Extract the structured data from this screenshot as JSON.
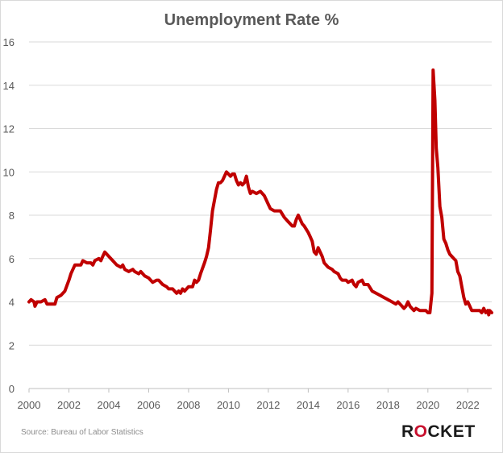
{
  "chart_data": {
    "type": "line",
    "title": "Unemployment Rate %",
    "xlabel": "",
    "ylabel": "",
    "xlim": [
      2000,
      2023.2
    ],
    "ylim": [
      0,
      16
    ],
    "grid": true,
    "x_ticks": [
      "2000",
      "2002",
      "2004",
      "2006",
      "2008",
      "2010",
      "2012",
      "2014",
      "2016",
      "2018",
      "2020",
      "2022"
    ],
    "y_ticks": [
      "0",
      "2",
      "4",
      "6",
      "8",
      "10",
      "12",
      "14",
      "16"
    ],
    "series": [
      {
        "color": "#c00000",
        "points": [
          [
            2000.0,
            4.0
          ],
          [
            2000.1,
            4.1
          ],
          [
            2000.25,
            4.0
          ],
          [
            2000.3,
            3.8
          ],
          [
            2000.4,
            4.0
          ],
          [
            2000.6,
            4.0
          ],
          [
            2000.8,
            4.1
          ],
          [
            2000.9,
            3.9
          ],
          [
            2001.1,
            3.9
          ],
          [
            2001.3,
            3.9
          ],
          [
            2001.4,
            4.2
          ],
          [
            2001.6,
            4.3
          ],
          [
            2001.8,
            4.5
          ],
          [
            2002.0,
            5.0
          ],
          [
            2002.1,
            5.3
          ],
          [
            2002.3,
            5.7
          ],
          [
            2002.6,
            5.7
          ],
          [
            2002.7,
            5.9
          ],
          [
            2002.9,
            5.8
          ],
          [
            2003.1,
            5.8
          ],
          [
            2003.2,
            5.7
          ],
          [
            2003.3,
            5.9
          ],
          [
            2003.5,
            6.0
          ],
          [
            2003.6,
            5.9
          ],
          [
            2003.7,
            6.1
          ],
          [
            2003.8,
            6.3
          ],
          [
            2003.9,
            6.2
          ],
          [
            2004.0,
            6.1
          ],
          [
            2004.2,
            5.9
          ],
          [
            2004.4,
            5.7
          ],
          [
            2004.6,
            5.6
          ],
          [
            2004.7,
            5.7
          ],
          [
            2004.8,
            5.5
          ],
          [
            2005.0,
            5.4
          ],
          [
            2005.2,
            5.5
          ],
          [
            2005.3,
            5.4
          ],
          [
            2005.5,
            5.3
          ],
          [
            2005.6,
            5.4
          ],
          [
            2005.8,
            5.2
          ],
          [
            2006.0,
            5.1
          ],
          [
            2006.2,
            4.9
          ],
          [
            2006.4,
            5.0
          ],
          [
            2006.5,
            5.0
          ],
          [
            2006.7,
            4.8
          ],
          [
            2006.9,
            4.7
          ],
          [
            2007.0,
            4.6
          ],
          [
            2007.2,
            4.6
          ],
          [
            2007.4,
            4.4
          ],
          [
            2007.5,
            4.5
          ],
          [
            2007.6,
            4.4
          ],
          [
            2007.7,
            4.6
          ],
          [
            2007.8,
            4.5
          ],
          [
            2008.0,
            4.7
          ],
          [
            2008.2,
            4.7
          ],
          [
            2008.3,
            5.0
          ],
          [
            2008.4,
            4.9
          ],
          [
            2008.5,
            5.0
          ],
          [
            2008.6,
            5.3
          ],
          [
            2008.8,
            5.8
          ],
          [
            2008.9,
            6.1
          ],
          [
            2009.0,
            6.5
          ],
          [
            2009.1,
            7.3
          ],
          [
            2009.2,
            8.2
          ],
          [
            2009.3,
            8.7
          ],
          [
            2009.4,
            9.2
          ],
          [
            2009.5,
            9.5
          ],
          [
            2009.6,
            9.5
          ],
          [
            2009.7,
            9.6
          ],
          [
            2009.8,
            9.8
          ],
          [
            2009.9,
            10.0
          ],
          [
            2010.0,
            9.9
          ],
          [
            2010.1,
            9.8
          ],
          [
            2010.2,
            9.9
          ],
          [
            2010.3,
            9.9
          ],
          [
            2010.4,
            9.6
          ],
          [
            2010.5,
            9.4
          ],
          [
            2010.6,
            9.5
          ],
          [
            2010.7,
            9.4
          ],
          [
            2010.8,
            9.5
          ],
          [
            2010.9,
            9.8
          ],
          [
            2011.0,
            9.3
          ],
          [
            2011.1,
            9.0
          ],
          [
            2011.2,
            9.1
          ],
          [
            2011.4,
            9.0
          ],
          [
            2011.6,
            9.1
          ],
          [
            2011.8,
            8.9
          ],
          [
            2012.0,
            8.5
          ],
          [
            2012.1,
            8.3
          ],
          [
            2012.3,
            8.2
          ],
          [
            2012.6,
            8.2
          ],
          [
            2012.8,
            7.9
          ],
          [
            2013.0,
            7.7
          ],
          [
            2013.2,
            7.5
          ],
          [
            2013.3,
            7.5
          ],
          [
            2013.4,
            7.8
          ],
          [
            2013.5,
            8.0
          ],
          [
            2013.7,
            7.6
          ],
          [
            2013.8,
            7.5
          ],
          [
            2014.0,
            7.2
          ],
          [
            2014.1,
            7.0
          ],
          [
            2014.2,
            6.8
          ],
          [
            2014.3,
            6.3
          ],
          [
            2014.4,
            6.2
          ],
          [
            2014.5,
            6.5
          ],
          [
            2014.7,
            6.1
          ],
          [
            2014.8,
            5.8
          ],
          [
            2015.0,
            5.6
          ],
          [
            2015.2,
            5.5
          ],
          [
            2015.3,
            5.4
          ],
          [
            2015.5,
            5.3
          ],
          [
            2015.6,
            5.1
          ],
          [
            2015.7,
            5.0
          ],
          [
            2015.9,
            5.0
          ],
          [
            2016.0,
            4.9
          ],
          [
            2016.2,
            5.0
          ],
          [
            2016.3,
            4.8
          ],
          [
            2016.4,
            4.7
          ],
          [
            2016.5,
            4.9
          ],
          [
            2016.7,
            5.0
          ],
          [
            2016.8,
            4.8
          ],
          [
            2017.0,
            4.8
          ],
          [
            2017.2,
            4.5
          ],
          [
            2017.4,
            4.4
          ],
          [
            2017.6,
            4.3
          ],
          [
            2017.8,
            4.2
          ],
          [
            2018.0,
            4.1
          ],
          [
            2018.2,
            4.0
          ],
          [
            2018.4,
            3.9
          ],
          [
            2018.5,
            4.0
          ],
          [
            2018.7,
            3.8
          ],
          [
            2018.8,
            3.7
          ],
          [
            2018.9,
            3.8
          ],
          [
            2019.0,
            4.0
          ],
          [
            2019.1,
            3.8
          ],
          [
            2019.2,
            3.7
          ],
          [
            2019.3,
            3.6
          ],
          [
            2019.4,
            3.7
          ],
          [
            2019.6,
            3.6
          ],
          [
            2019.8,
            3.6
          ],
          [
            2019.9,
            3.6
          ],
          [
            2020.0,
            3.5
          ],
          [
            2020.1,
            3.5
          ],
          [
            2020.2,
            4.4
          ],
          [
            2020.26,
            14.7
          ],
          [
            2020.35,
            13.3
          ],
          [
            2020.42,
            11.1
          ],
          [
            2020.5,
            10.2
          ],
          [
            2020.6,
            8.4
          ],
          [
            2020.7,
            7.9
          ],
          [
            2020.8,
            6.9
          ],
          [
            2020.9,
            6.7
          ],
          [
            2021.0,
            6.4
          ],
          [
            2021.1,
            6.2
          ],
          [
            2021.2,
            6.1
          ],
          [
            2021.3,
            6.0
          ],
          [
            2021.4,
            5.9
          ],
          [
            2021.5,
            5.4
          ],
          [
            2021.6,
            5.2
          ],
          [
            2021.7,
            4.7
          ],
          [
            2021.8,
            4.2
          ],
          [
            2021.9,
            3.9
          ],
          [
            2022.0,
            4.0
          ],
          [
            2022.1,
            3.8
          ],
          [
            2022.2,
            3.6
          ],
          [
            2022.4,
            3.6
          ],
          [
            2022.6,
            3.6
          ],
          [
            2022.7,
            3.5
          ],
          [
            2022.8,
            3.7
          ],
          [
            2022.9,
            3.5
          ],
          [
            2023.0,
            3.6
          ],
          [
            2023.05,
            3.4
          ],
          [
            2023.1,
            3.6
          ],
          [
            2023.2,
            3.5
          ]
        ]
      }
    ]
  },
  "footer": {
    "source": "Source: Bureau of Labor Statistics",
    "logo_text_1": "R",
    "logo_text_2": "O",
    "logo_text_3": "CKET"
  }
}
